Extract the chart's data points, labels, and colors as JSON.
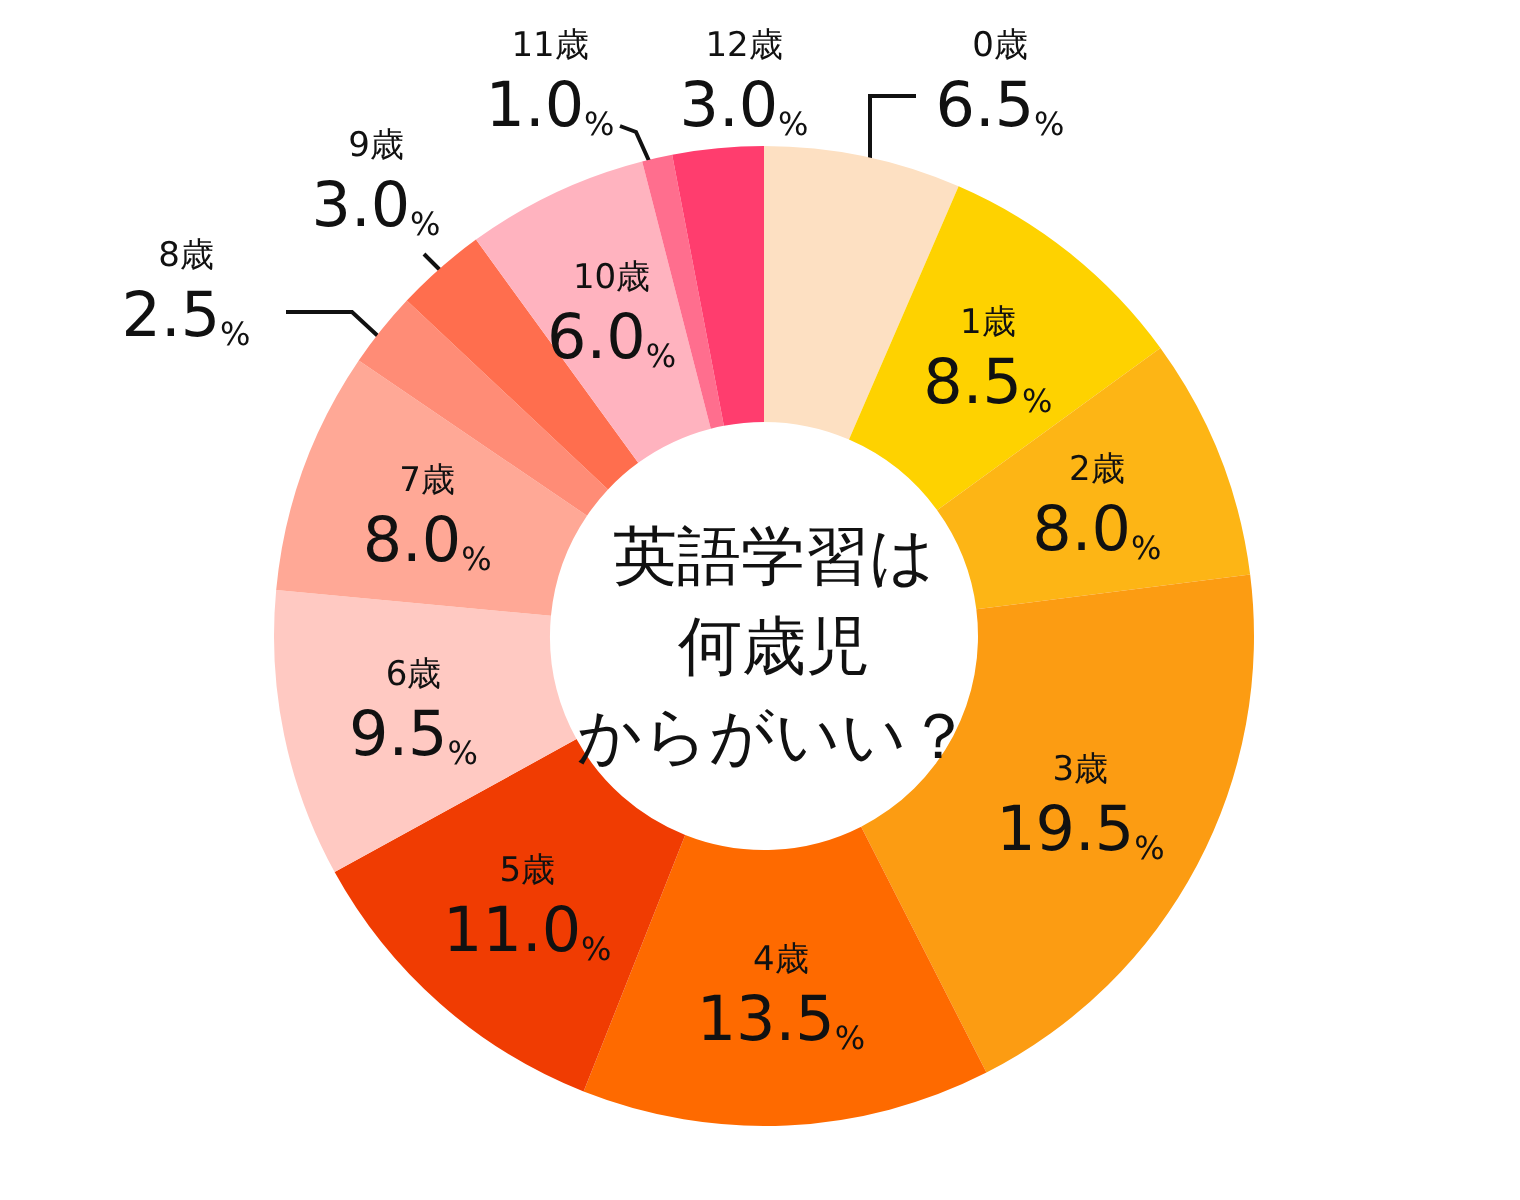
{
  "chart_data": {
    "type": "donut",
    "title": "英語学習は何歳児からがいい？",
    "categories": [
      "0歳",
      "1歳",
      "2歳",
      "3歳",
      "4歳",
      "5歳",
      "6歳",
      "7歳",
      "8歳",
      "9歳",
      "10歳",
      "11歳",
      "12歳"
    ],
    "values": [
      6.5,
      8.5,
      8.0,
      19.5,
      13.5,
      11.0,
      9.5,
      8.0,
      2.5,
      3.0,
      6.0,
      1.0,
      3.0
    ],
    "value_labels": [
      "6.5%",
      "8.5%",
      "8.0%",
      "19.5%",
      "13.5%",
      "11.0%",
      "9.5%",
      "8.0%",
      "2.5%",
      "3.0%",
      "6.0%",
      "1.0%",
      "3.0%"
    ],
    "colors": [
      "#fde0c2",
      "#fed200",
      "#fdb515",
      "#fc9c12",
      "#fe6a00",
      "#f03c02",
      "#ffc9c2",
      "#ffa896",
      "#ff8c76",
      "#ff6e4e",
      "#ffb3bf",
      "#ff6e8e",
      "#ff3d6e"
    ]
  }
}
